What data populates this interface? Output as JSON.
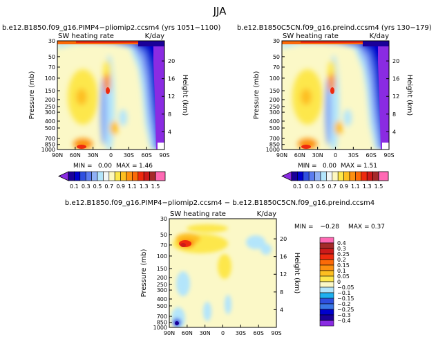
{
  "page": {
    "main_title": "JJA"
  },
  "colors": {
    "bg": "#ffffff",
    "ink": "#000000",
    "field_base": "#fbf8c7"
  },
  "chart_data": [
    {
      "type": "heatmap",
      "id": "p1",
      "title": "b.e12.B1850.f09_g16.PIMP4−pliomip2.ccsm4 (yrs 1051−1100)",
      "left_label": "SW heating rate",
      "right_label": "K/day",
      "ylabel": "Pressure (mb)",
      "ylabel_right": "Height (km)",
      "x_ticks": [
        "90N",
        "60N",
        "30N",
        "0",
        "30S",
        "60S",
        "90S"
      ],
      "p_ticks": [
        "30",
        "50",
        "70",
        "100",
        "150",
        "200",
        "250",
        "300",
        "400",
        "500",
        "700",
        "850",
        "1000"
      ],
      "h_ticks": [
        "20",
        "16",
        "12",
        "8",
        "4"
      ],
      "stats": {
        "min_label": "MIN =",
        "min": "0.00",
        "max_label": "MAX =",
        "max": "1.46"
      }
    },
    {
      "type": "heatmap",
      "id": "p2",
      "title": "b.e12.B1850C5CN.f09_g16.preind.ccsm4 (yrs 130−179)",
      "left_label": "SW heating rate",
      "right_label": "K/day",
      "ylabel": "Pressure (mb)",
      "ylabel_right": "Height (km)",
      "x_ticks": [
        "90N",
        "60N",
        "30N",
        "0",
        "30S",
        "60S",
        "90S"
      ],
      "p_ticks": [
        "30",
        "50",
        "70",
        "100",
        "150",
        "200",
        "250",
        "300",
        "400",
        "500",
        "700",
        "850",
        "1000"
      ],
      "h_ticks": [
        "20",
        "16",
        "12",
        "8",
        "4"
      ],
      "stats": {
        "min_label": "MIN =",
        "min": "0.00",
        "max_label": "MAX =",
        "max": "1.51"
      }
    },
    {
      "type": "heatmap",
      "id": "p3",
      "title": "b.e12.B1850.f09_g16.PIMP4−pliomip2.ccsm4 − b.e12.B1850C5CN.f09_g16.preind.ccsm4",
      "left_label": "SW heating rate",
      "right_label": "K/day",
      "ylabel": "Pressure (mb)",
      "ylabel_right": "Height (km)",
      "x_ticks": [
        "90N",
        "60N",
        "30N",
        "0",
        "30S",
        "60S",
        "90S"
      ],
      "p_ticks": [
        "30",
        "50",
        "70",
        "100",
        "150",
        "200",
        "250",
        "300",
        "400",
        "500",
        "700",
        "850",
        "1000"
      ],
      "h_ticks": [
        "20",
        "16",
        "12",
        "8",
        "4"
      ],
      "stats": {
        "min_label": "MIN =",
        "min": "−0.28",
        "max_label": "MAX =",
        "max": "0.37"
      }
    }
  ],
  "colorbars": {
    "top": {
      "labels": [
        "0.1",
        "0.3",
        "0.5",
        "0.7",
        "0.9",
        "1.1",
        "1.3",
        "1.5"
      ],
      "colors": [
        "#8a2be2",
        "#1a0099",
        "#0000cd",
        "#2f4fe0",
        "#5b7cf0",
        "#8fb0f5",
        "#b3e5fb",
        "#f2f7f7",
        "#fdf8c0",
        "#fde74c",
        "#fdbf20",
        "#fd9010",
        "#fc6a08",
        "#ee2a0e",
        "#cc1a1a",
        "#a52a2a",
        "#ff69b4"
      ]
    },
    "bottom": {
      "labels": [
        "0.4",
        "0.3",
        "0.25",
        "0.2",
        "0.15",
        "0.1",
        "0.05",
        "0",
        "−0.05",
        "−0.1",
        "−0.15",
        "−0.2",
        "−0.25",
        "−0.3",
        "−0.4"
      ],
      "colors": [
        "#ff69b4",
        "#a52a2a",
        "#cc1a1a",
        "#ee2a0e",
        "#fc6a08",
        "#fd9010",
        "#fdbf20",
        "#fde74c",
        "#fbf8c7",
        "#b3e5fb",
        "#1eb0f0",
        "#2f4fe0",
        "#3a78e8",
        "#0000cd",
        "#1a0099",
        "#8a2be2"
      ]
    }
  }
}
